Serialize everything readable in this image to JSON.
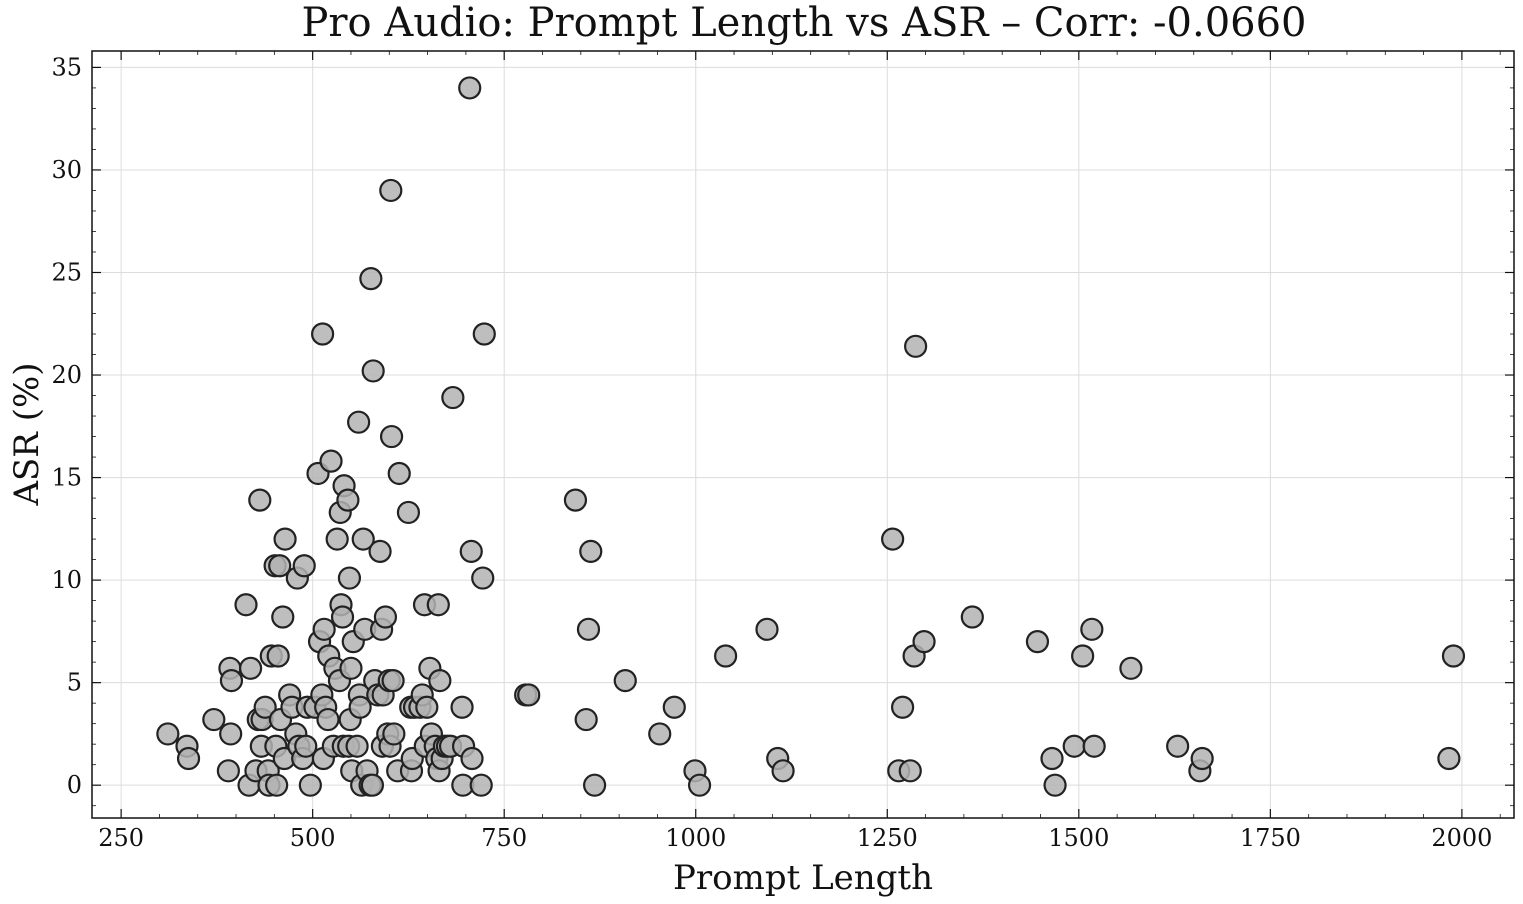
{
  "chart_data": {
    "type": "scatter",
    "title": "Pro Audio: Prompt Length vs ASR – Corr: -0.0660",
    "xlabel": "Prompt Length",
    "ylabel": "ASR (%)",
    "xlim": [
      212,
      2068
    ],
    "ylim": [
      -1.6,
      35.8
    ],
    "xticks": [
      250,
      500,
      750,
      1000,
      1250,
      1500,
      1750,
      2000
    ],
    "yticks": [
      0,
      5,
      10,
      15,
      20,
      25,
      30,
      35
    ],
    "grid": true,
    "marker_fill": "#b3b3b3",
    "marker_edge": "#222222",
    "points": [
      [
        311,
        2.5
      ],
      [
        336,
        1.9
      ],
      [
        338,
        1.3
      ],
      [
        371,
        3.2
      ],
      [
        390,
        0.7
      ],
      [
        392,
        5.7
      ],
      [
        393,
        2.5
      ],
      [
        394,
        5.1
      ],
      [
        413,
        8.8
      ],
      [
        417,
        0.0
      ],
      [
        419,
        5.7
      ],
      [
        426,
        0.7
      ],
      [
        429,
        3.2
      ],
      [
        431,
        13.9
      ],
      [
        433,
        1.9
      ],
      [
        434,
        3.2
      ],
      [
        438,
        3.8
      ],
      [
        442,
        0.7
      ],
      [
        443,
        0.0
      ],
      [
        446,
        6.3
      ],
      [
        451,
        10.7
      ],
      [
        452,
        1.9
      ],
      [
        453,
        0.0
      ],
      [
        455,
        6.3
      ],
      [
        457,
        10.7
      ],
      [
        458,
        3.2
      ],
      [
        461,
        8.2
      ],
      [
        463,
        1.3
      ],
      [
        464,
        12.0
      ],
      [
        470,
        4.4
      ],
      [
        473,
        3.8
      ],
      [
        478,
        2.5
      ],
      [
        480,
        10.1
      ],
      [
        482,
        1.9
      ],
      [
        487,
        1.3
      ],
      [
        489,
        10.7
      ],
      [
        491,
        1.9
      ],
      [
        493,
        3.8
      ],
      [
        497,
        0.0
      ],
      [
        503,
        3.8
      ],
      [
        507,
        15.2
      ],
      [
        509,
        7.0
      ],
      [
        512,
        4.4
      ],
      [
        513,
        22.0
      ],
      [
        514,
        1.3
      ],
      [
        515,
        7.6
      ],
      [
        517,
        3.8
      ],
      [
        520,
        3.2
      ],
      [
        521,
        6.3
      ],
      [
        524,
        15.8
      ],
      [
        527,
        1.9
      ],
      [
        529,
        5.7
      ],
      [
        532,
        12.0
      ],
      [
        535,
        5.1
      ],
      [
        536,
        13.3
      ],
      [
        537,
        8.8
      ],
      [
        539,
        8.2
      ],
      [
        540,
        1.9
      ],
      [
        541,
        14.6
      ],
      [
        546,
        13.9
      ],
      [
        547,
        1.9
      ],
      [
        548,
        10.1
      ],
      [
        549,
        3.2
      ],
      [
        550,
        5.7
      ],
      [
        551,
        0.7
      ],
      [
        553,
        7.0
      ],
      [
        558,
        1.9
      ],
      [
        560,
        17.7
      ],
      [
        561,
        4.4
      ],
      [
        562,
        3.8
      ],
      [
        564,
        0.0
      ],
      [
        566,
        12.0
      ],
      [
        568,
        7.6
      ],
      [
        571,
        0.7
      ],
      [
        575,
        0.0
      ],
      [
        576,
        24.7
      ],
      [
        578,
        0.0
      ],
      [
        579,
        20.2
      ],
      [
        581,
        5.1
      ],
      [
        585,
        4.4
      ],
      [
        588,
        11.4
      ],
      [
        590,
        7.6
      ],
      [
        591,
        1.9
      ],
      [
        592,
        4.4
      ],
      [
        595,
        8.2
      ],
      [
        598,
        2.5
      ],
      [
        600,
        5.1
      ],
      [
        601,
        1.9
      ],
      [
        602,
        29.0
      ],
      [
        603,
        17.0
      ],
      [
        605,
        5.1
      ],
      [
        606,
        2.5
      ],
      [
        611,
        0.7
      ],
      [
        613,
        15.2
      ],
      [
        625,
        13.3
      ],
      [
        628,
        3.8
      ],
      [
        629,
        0.7
      ],
      [
        630,
        1.3
      ],
      [
        633,
        3.8
      ],
      [
        640,
        3.8
      ],
      [
        643,
        4.4
      ],
      [
        646,
        8.8
      ],
      [
        647,
        1.9
      ],
      [
        649,
        3.8
      ],
      [
        653,
        5.7
      ],
      [
        655,
        2.5
      ],
      [
        660,
        1.9
      ],
      [
        662,
        1.3
      ],
      [
        664,
        8.8
      ],
      [
        665,
        0.7
      ],
      [
        666,
        5.1
      ],
      [
        669,
        1.3
      ],
      [
        672,
        1.9
      ],
      [
        676,
        1.9
      ],
      [
        680,
        1.9
      ],
      [
        683,
        18.9
      ],
      [
        695,
        3.8
      ],
      [
        696,
        0.0
      ],
      [
        697,
        1.9
      ],
      [
        705,
        34.0
      ],
      [
        707,
        11.4
      ],
      [
        708,
        1.3
      ],
      [
        720,
        0.0
      ],
      [
        722,
        10.1
      ],
      [
        724,
        22.0
      ],
      [
        778,
        4.4
      ],
      [
        782,
        4.4
      ],
      [
        843,
        13.9
      ],
      [
        857,
        3.2
      ],
      [
        860,
        7.6
      ],
      [
        863,
        11.4
      ],
      [
        868,
        0.0
      ],
      [
        908,
        5.1
      ],
      [
        953,
        2.5
      ],
      [
        972,
        3.8
      ],
      [
        999,
        0.7
      ],
      [
        1005,
        0.0
      ],
      [
        1039,
        6.3
      ],
      [
        1093,
        7.6
      ],
      [
        1107,
        1.3
      ],
      [
        1114,
        0.7
      ],
      [
        1257,
        12.0
      ],
      [
        1265,
        0.7
      ],
      [
        1270,
        3.8
      ],
      [
        1280,
        0.7
      ],
      [
        1285,
        6.3
      ],
      [
        1287,
        21.4
      ],
      [
        1298,
        7.0
      ],
      [
        1361,
        8.2
      ],
      [
        1446,
        7.0
      ],
      [
        1465,
        1.3
      ],
      [
        1469,
        0.0
      ],
      [
        1494,
        1.9
      ],
      [
        1505,
        6.3
      ],
      [
        1517,
        7.6
      ],
      [
        1520,
        1.9
      ],
      [
        1568,
        5.7
      ],
      [
        1629,
        1.9
      ],
      [
        1658,
        0.7
      ],
      [
        1661,
        1.3
      ],
      [
        1983,
        1.3
      ],
      [
        1989,
        6.3
      ]
    ]
  }
}
